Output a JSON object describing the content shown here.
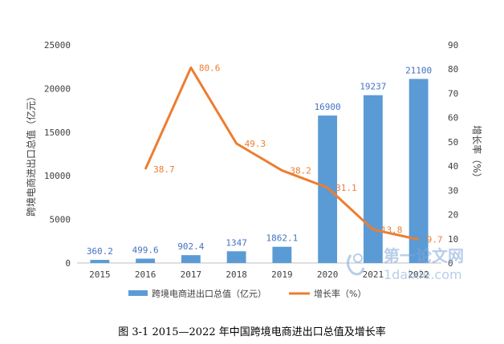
{
  "chart_data": {
    "type": "bar",
    "categories": [
      "2015",
      "2016",
      "2017",
      "2018",
      "2019",
      "2020",
      "2021",
      "2022"
    ],
    "series": [
      {
        "name": "跨境电商进出口总值（亿元）",
        "kind": "bar",
        "axis": "left",
        "color": "#5B9BD5",
        "values": [
          360.2,
          499.6,
          902.4,
          1347,
          1862.1,
          16900,
          19237,
          21100
        ],
        "labels": [
          "360.2",
          "499.6",
          "902.4",
          "1347",
          "1862.1",
          "16900",
          "19237",
          "21100"
        ]
      },
      {
        "name": "增长率（%）",
        "kind": "line",
        "axis": "right",
        "color": "#ED7D31",
        "values": [
          null,
          38.7,
          80.6,
          49.3,
          38.2,
          31.1,
          13.8,
          9.7
        ],
        "labels": [
          "",
          "38.7",
          "80.6",
          "49.3",
          "38.2",
          "31.1",
          "13.8",
          "9.7"
        ]
      }
    ],
    "ylabel": "跨境电商进出口总值（亿元）",
    "y2label": "增长率（%）",
    "ylim": [
      0,
      25000
    ],
    "y2lim": [
      0,
      90
    ],
    "yticks": [
      "0",
      "5000",
      "10000",
      "15000",
      "20000",
      "25000"
    ],
    "y2ticks": [
      "0",
      "10",
      "20",
      "30",
      "40",
      "50",
      "60",
      "70",
      "80",
      "90"
    ],
    "legend_position": "bottom",
    "grid": false
  },
  "caption": "图 3-1 2015—2022 年中国跨境电商进出口总值及增长率",
  "watermark": {
    "text": "第一论文网",
    "subtext": "1daixie.com"
  }
}
